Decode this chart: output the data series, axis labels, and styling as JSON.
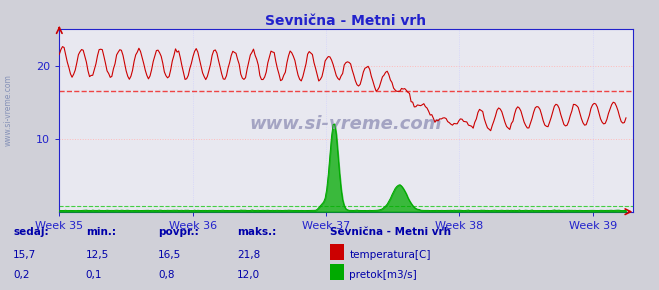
{
  "title": "Sevnična - Metni vrh",
  "bg_color": "#d0d0d8",
  "plot_bg_color": "#e8e8f0",
  "temp_color": "#cc0000",
  "flow_color": "#00aa00",
  "avg_temp_color": "#ee4444",
  "avg_flow_color": "#44cc44",
  "axis_color": "#2222cc",
  "tick_color": "#2222cc",
  "title_color": "#2222cc",
  "grid_color_h": "#ffbbbb",
  "grid_color_v": "#ccccff",
  "flow_grid_color": "#bbffbb",
  "ylim": [
    0,
    25
  ],
  "xlim_weeks": [
    35,
    39.3
  ],
  "week_ticks": [
    35,
    36,
    37,
    38,
    39
  ],
  "avg_temp": 16.5,
  "avg_flow": 0.8,
  "sedaj_temp": 15.7,
  "min_temp": 12.5,
  "povpr_temp": 16.5,
  "maks_temp": 21.8,
  "sedaj_flow": 0.2,
  "min_flow": 0.1,
  "povpr_flow": 0.8,
  "maks_flow": 12.0,
  "footer_color": "#0000aa",
  "watermark": "www.si-vreme.com",
  "watermark_color": "#9999bb",
  "legend_title": "Sevnična - Metni vrh",
  "legend_temp": "temperatura[C]",
  "legend_flow": "pretok[m3/s]",
  "label_sedaj": "sedaj:",
  "label_min": "min.:",
  "label_povpr": "povpr.:",
  "label_maks": "maks.:"
}
